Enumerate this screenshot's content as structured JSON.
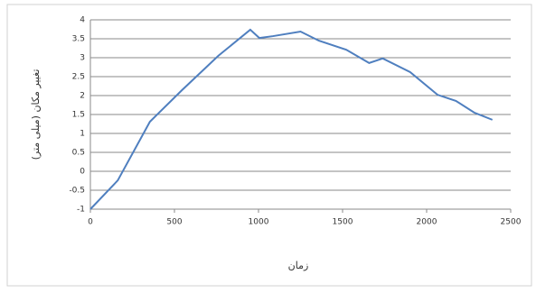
{
  "chart_data": {
    "type": "line",
    "xlabel": "زمان",
    "ylabel": "تغییر مکان (میلی متر)",
    "x": [
      0,
      163,
      354,
      544,
      761,
      951,
      1005,
      1087,
      1250,
      1359,
      1522,
      1658,
      1739,
      1902,
      2065,
      2174,
      2283,
      2391
    ],
    "series": [
      {
        "name": "",
        "color": "#4f7fbf",
        "values": [
          -1,
          -0.24,
          1.31,
          2.14,
          3.05,
          3.74,
          3.52,
          3.57,
          3.69,
          3.45,
          3.21,
          2.86,
          2.98,
          2.62,
          2.02,
          1.86,
          1.55,
          1.36
        ]
      }
    ],
    "xlim": [
      0,
      2500
    ],
    "xticks": [
      0,
      500,
      1000,
      1500,
      2000,
      2500
    ],
    "ylim": [
      -1,
      4
    ],
    "yticks": [
      -1,
      -0.5,
      0,
      0.5,
      1,
      1.5,
      2,
      2.5,
      3,
      3.5,
      4
    ],
    "grid": true
  }
}
